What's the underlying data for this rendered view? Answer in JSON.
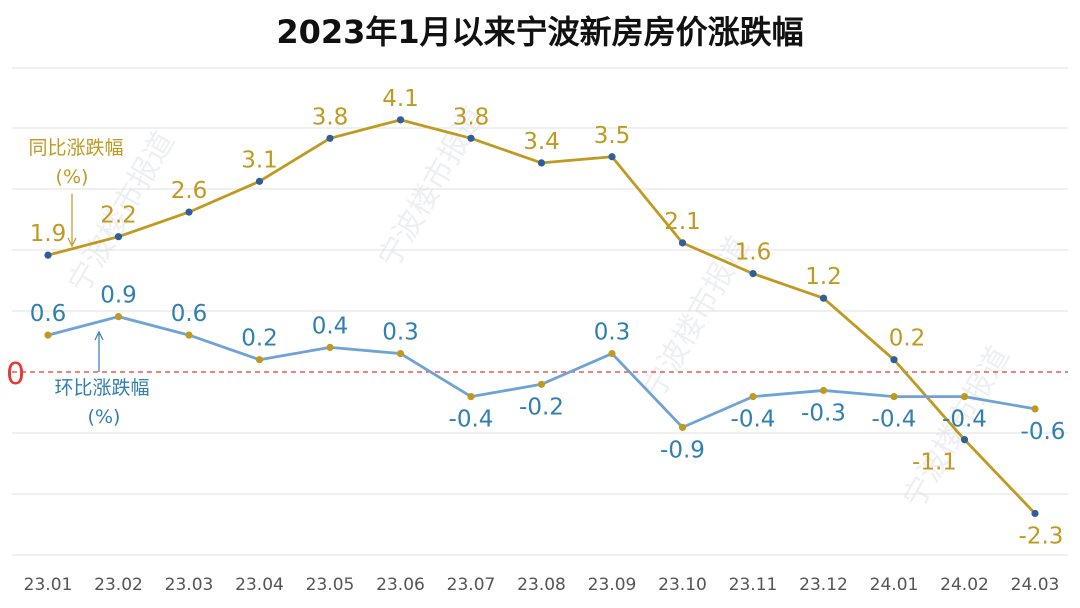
{
  "chart_data": {
    "type": "line",
    "title": "2023年1月以来宁波新房房价涨跌幅",
    "categories": [
      "23.01",
      "23.02",
      "23.03",
      "23.04",
      "23.05",
      "23.06",
      "23.07",
      "23.08",
      "23.09",
      "23.10",
      "23.11",
      "23.12",
      "24.01",
      "24.02",
      "24.03"
    ],
    "series": [
      {
        "name": "同比涨跌幅",
        "unit": "(%)",
        "color": "#c09a20",
        "values": [
          1.9,
          2.2,
          2.6,
          3.1,
          3.8,
          4.1,
          3.8,
          3.4,
          3.5,
          2.1,
          1.6,
          1.2,
          0.2,
          -1.1,
          -2.3
        ]
      },
      {
        "name": "环比涨跌幅",
        "unit": "(%)",
        "color": "#6fa3d6",
        "label_color": "#2f7fb0",
        "values": [
          0.6,
          0.9,
          0.6,
          0.2,
          0.4,
          0.3,
          -0.4,
          -0.2,
          0.3,
          -0.9,
          -0.4,
          -0.3,
          -0.4,
          -0.4,
          -0.6
        ]
      }
    ],
    "zero_line": {
      "label": "0",
      "color": "#e53935"
    },
    "ylim": [
      -2.6,
      4.5
    ],
    "grid": true,
    "xlabel": "",
    "ylabel": ""
  },
  "watermark": "宁波楼市报道"
}
